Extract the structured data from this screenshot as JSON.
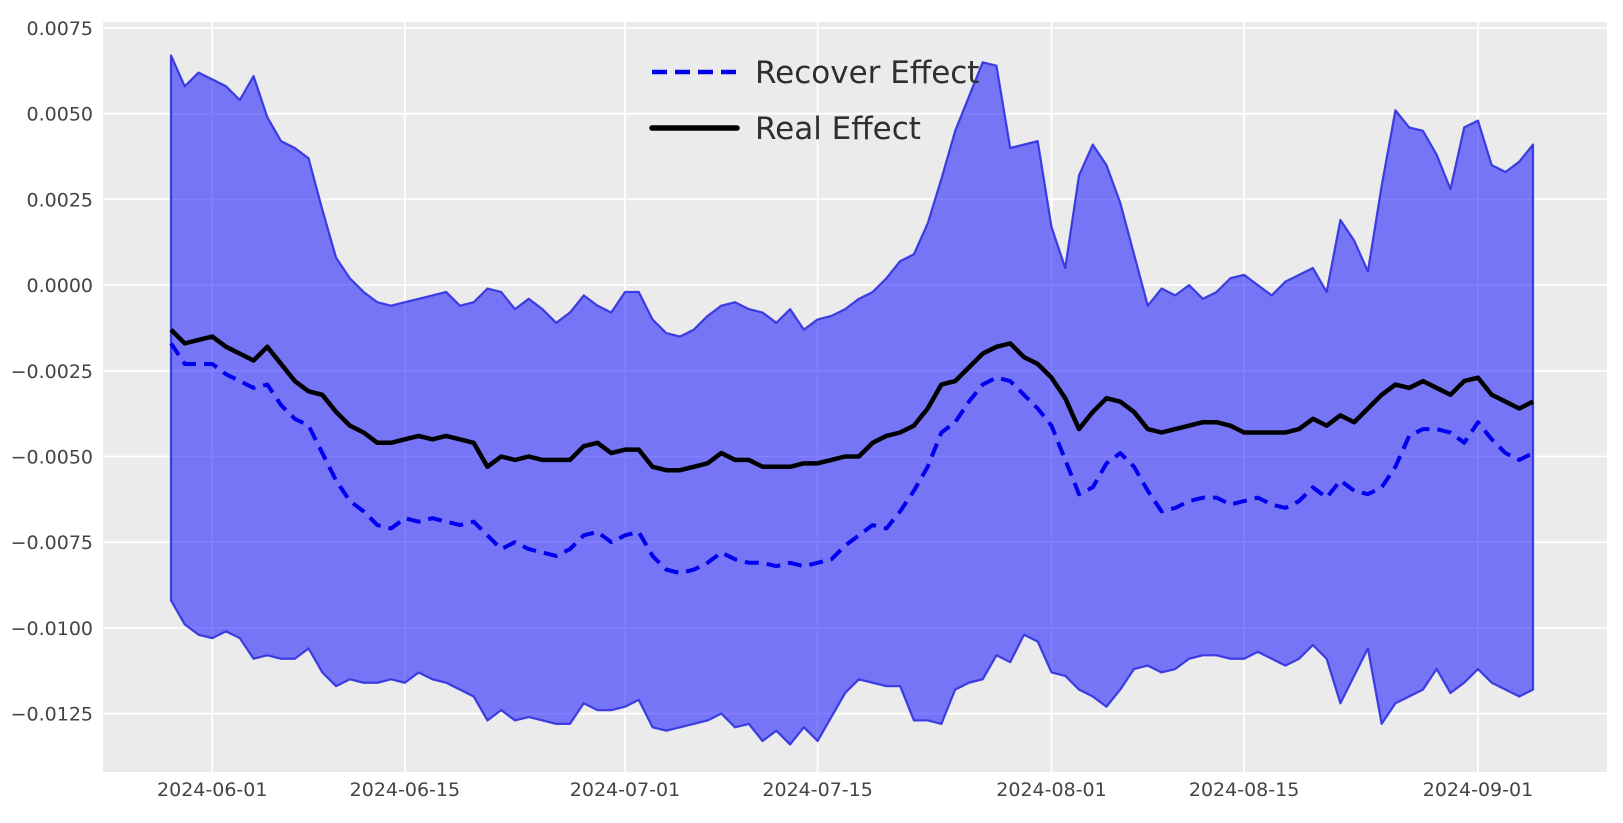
{
  "figure": {
    "background": "#ffffff",
    "plot_background": "#ebebeb",
    "grid_color": "#ffffff"
  },
  "legend": {
    "items": [
      {
        "label": "Recover Effect",
        "color": "#0000ee",
        "style": "dashed"
      },
      {
        "label": "Real Effect",
        "color": "#000000",
        "style": "solid"
      }
    ],
    "position": "upper center",
    "frame": false
  },
  "chart_data": {
    "type": "line",
    "title": "",
    "xlabel": "",
    "ylabel": "",
    "grid": true,
    "band_fill": "rgba(0,0,255,0.5)",
    "band_edge": "rgba(48,48,224,0.9)",
    "ylim": [
      -0.0142,
      0.00768
    ],
    "yticks": [
      0.0075,
      0.005,
      0.0025,
      0.0,
      -0.0025,
      -0.005,
      -0.0075,
      -0.01,
      -0.0125
    ],
    "xticks": [
      "2024-06-01",
      "2024-06-15",
      "2024-07-01",
      "2024-07-15",
      "2024-08-01",
      "2024-08-15",
      "2024-09-01"
    ],
    "x": [
      "2024-05-29",
      "2024-05-30",
      "2024-05-31",
      "2024-06-01",
      "2024-06-02",
      "2024-06-03",
      "2024-06-04",
      "2024-06-05",
      "2024-06-06",
      "2024-06-07",
      "2024-06-08",
      "2024-06-09",
      "2024-06-10",
      "2024-06-11",
      "2024-06-12",
      "2024-06-13",
      "2024-06-14",
      "2024-06-15",
      "2024-06-16",
      "2024-06-17",
      "2024-06-18",
      "2024-06-19",
      "2024-06-20",
      "2024-06-21",
      "2024-06-22",
      "2024-06-23",
      "2024-06-24",
      "2024-06-25",
      "2024-06-26",
      "2024-06-27",
      "2024-06-28",
      "2024-06-29",
      "2024-06-30",
      "2024-07-01",
      "2024-07-02",
      "2024-07-03",
      "2024-07-04",
      "2024-07-05",
      "2024-07-06",
      "2024-07-07",
      "2024-07-08",
      "2024-07-09",
      "2024-07-10",
      "2024-07-11",
      "2024-07-12",
      "2024-07-13",
      "2024-07-14",
      "2024-07-15",
      "2024-07-16",
      "2024-07-17",
      "2024-07-18",
      "2024-07-19",
      "2024-07-20",
      "2024-07-21",
      "2024-07-22",
      "2024-07-23",
      "2024-07-24",
      "2024-07-25",
      "2024-07-26",
      "2024-07-27",
      "2024-07-28",
      "2024-07-29",
      "2024-07-30",
      "2024-07-31",
      "2024-08-01",
      "2024-08-02",
      "2024-08-03",
      "2024-08-04",
      "2024-08-05",
      "2024-08-06",
      "2024-08-07",
      "2024-08-08",
      "2024-08-09",
      "2024-08-10",
      "2024-08-11",
      "2024-08-12",
      "2024-08-13",
      "2024-08-14",
      "2024-08-15",
      "2024-08-16",
      "2024-08-17",
      "2024-08-18",
      "2024-08-19",
      "2024-08-20",
      "2024-08-21",
      "2024-08-22",
      "2024-08-23",
      "2024-08-24",
      "2024-08-25",
      "2024-08-26",
      "2024-08-27",
      "2024-08-28",
      "2024-08-29",
      "2024-08-30",
      "2024-08-31",
      "2024-09-01",
      "2024-09-02",
      "2024-09-03",
      "2024-09-04",
      "2024-09-05"
    ],
    "series": [
      {
        "name": "Recover Effect",
        "style": "dashed",
        "color": "#0000ee",
        "values": [
          -0.0017,
          -0.0023,
          -0.0023,
          -0.0023,
          -0.0026,
          -0.0028,
          -0.003,
          -0.0029,
          -0.0035,
          -0.0039,
          -0.0041,
          -0.0049,
          -0.0057,
          -0.0063,
          -0.0066,
          -0.007,
          -0.0071,
          -0.0068,
          -0.0069,
          -0.0068,
          -0.0069,
          -0.007,
          -0.0069,
          -0.0073,
          -0.0077,
          -0.0075,
          -0.0077,
          -0.0078,
          -0.0079,
          -0.0077,
          -0.0073,
          -0.0072,
          -0.0075,
          -0.0073,
          -0.0072,
          -0.0079,
          -0.0083,
          -0.0084,
          -0.0083,
          -0.0081,
          -0.0078,
          -0.008,
          -0.0081,
          -0.0081,
          -0.0082,
          -0.0081,
          -0.0082,
          -0.0081,
          -0.008,
          -0.0076,
          -0.0073,
          -0.007,
          -0.0071,
          -0.0066,
          -0.006,
          -0.0053,
          -0.0043,
          -0.004,
          -0.0034,
          -0.0029,
          -0.0027,
          -0.0028,
          -0.0032,
          -0.0036,
          -0.0041,
          -0.0051,
          -0.0061,
          -0.0059,
          -0.0052,
          -0.0049,
          -0.0053,
          -0.006,
          -0.0066,
          -0.0065,
          -0.0063,
          -0.0062,
          -0.0062,
          -0.0064,
          -0.0063,
          -0.0062,
          -0.0064,
          -0.0065,
          -0.0063,
          -0.0059,
          -0.0062,
          -0.0057,
          -0.006,
          -0.0061,
          -0.0059,
          -0.0053,
          -0.0044,
          -0.0042,
          -0.0042,
          -0.0043,
          -0.0046,
          -0.004,
          -0.0045,
          -0.0049,
          -0.0051,
          -0.0049
        ]
      },
      {
        "name": "Real Effect",
        "style": "solid",
        "color": "#000000",
        "values": [
          -0.0013,
          -0.0017,
          -0.0016,
          -0.0015,
          -0.0018,
          -0.002,
          -0.0022,
          -0.0018,
          -0.0023,
          -0.0028,
          -0.0031,
          -0.0032,
          -0.0037,
          -0.0041,
          -0.0043,
          -0.0046,
          -0.0046,
          -0.0045,
          -0.0044,
          -0.0045,
          -0.0044,
          -0.0045,
          -0.0046,
          -0.0053,
          -0.005,
          -0.0051,
          -0.005,
          -0.0051,
          -0.0051,
          -0.0051,
          -0.0047,
          -0.0046,
          -0.0049,
          -0.0048,
          -0.0048,
          -0.0053,
          -0.0054,
          -0.0054,
          -0.0053,
          -0.0052,
          -0.0049,
          -0.0051,
          -0.0051,
          -0.0053,
          -0.0053,
          -0.0053,
          -0.0052,
          -0.0052,
          -0.0051,
          -0.005,
          -0.005,
          -0.0046,
          -0.0044,
          -0.0043,
          -0.0041,
          -0.0036,
          -0.0029,
          -0.0028,
          -0.0024,
          -0.002,
          -0.0018,
          -0.0017,
          -0.0021,
          -0.0023,
          -0.0027,
          -0.0033,
          -0.0042,
          -0.0037,
          -0.0033,
          -0.0034,
          -0.0037,
          -0.0042,
          -0.0043,
          -0.0042,
          -0.0041,
          -0.004,
          -0.004,
          -0.0041,
          -0.0043,
          -0.0043,
          -0.0043,
          -0.0043,
          -0.0042,
          -0.0039,
          -0.0041,
          -0.0038,
          -0.004,
          -0.0036,
          -0.0032,
          -0.0029,
          -0.003,
          -0.0028,
          -0.003,
          -0.0032,
          -0.0028,
          -0.0027,
          -0.0032,
          -0.0034,
          -0.0036,
          -0.0034
        ]
      },
      {
        "name": "CI upper",
        "role": "band_upper",
        "style": "band",
        "color": "rgba(0,0,255,0.5)",
        "values": [
          0.0067,
          0.0058,
          0.0062,
          0.006,
          0.0058,
          0.0054,
          0.0061,
          0.0049,
          0.0042,
          0.004,
          0.0037,
          0.0022,
          0.0008,
          0.0002,
          -0.0002,
          -0.0005,
          -0.0006,
          -0.0005,
          -0.0004,
          -0.0003,
          -0.0002,
          -0.0006,
          -0.0005,
          -0.0001,
          -0.0002,
          -0.0007,
          -0.0004,
          -0.0007,
          -0.0011,
          -0.0008,
          -0.0003,
          -0.0006,
          -0.0008,
          -0.0002,
          -0.0002,
          -0.001,
          -0.0014,
          -0.0015,
          -0.0013,
          -0.0009,
          -0.0006,
          -0.0005,
          -0.0007,
          -0.0008,
          -0.0011,
          -0.0007,
          -0.0013,
          -0.001,
          -0.0009,
          -0.0007,
          -0.0004,
          -0.0002,
          0.0002,
          0.0007,
          0.0009,
          0.0018,
          0.0031,
          0.0045,
          0.0055,
          0.0065,
          0.0064,
          0.004,
          0.0041,
          0.0042,
          0.0017,
          0.0005,
          0.0032,
          0.0041,
          0.0035,
          0.0024,
          0.0009,
          -0.0006,
          -0.0001,
          -0.0003,
          0.0,
          -0.0004,
          -0.0002,
          0.0002,
          0.0003,
          0.0,
          -0.0003,
          0.0001,
          0.0003,
          0.0005,
          -0.0002,
          0.0019,
          0.0013,
          0.0004,
          0.0029,
          0.0051,
          0.0046,
          0.0045,
          0.0038,
          0.0028,
          0.0046,
          0.0048,
          0.0035,
          0.0033,
          0.0036,
          0.0041
        ]
      },
      {
        "name": "CI lower",
        "role": "band_lower",
        "style": "band",
        "color": "rgba(0,0,255,0.5)",
        "values": [
          -0.0092,
          -0.0099,
          -0.0102,
          -0.0103,
          -0.0101,
          -0.0103,
          -0.0109,
          -0.0108,
          -0.0109,
          -0.0109,
          -0.0106,
          -0.0113,
          -0.0117,
          -0.0115,
          -0.0116,
          -0.0116,
          -0.0115,
          -0.0116,
          -0.0113,
          -0.0115,
          -0.0116,
          -0.0118,
          -0.012,
          -0.0127,
          -0.0124,
          -0.0127,
          -0.0126,
          -0.0127,
          -0.0128,
          -0.0128,
          -0.0122,
          -0.0124,
          -0.0124,
          -0.0123,
          -0.0121,
          -0.0129,
          -0.013,
          -0.0129,
          -0.0128,
          -0.0127,
          -0.0125,
          -0.0129,
          -0.0128,
          -0.0133,
          -0.013,
          -0.0134,
          -0.0129,
          -0.0133,
          -0.0126,
          -0.0119,
          -0.0115,
          -0.0116,
          -0.0117,
          -0.0117,
          -0.0127,
          -0.0127,
          -0.0128,
          -0.0118,
          -0.0116,
          -0.0115,
          -0.0108,
          -0.011,
          -0.0102,
          -0.0104,
          -0.0113,
          -0.0114,
          -0.0118,
          -0.012,
          -0.0123,
          -0.0118,
          -0.0112,
          -0.0111,
          -0.0113,
          -0.0112,
          -0.0109,
          -0.0108,
          -0.0108,
          -0.0109,
          -0.0109,
          -0.0107,
          -0.0109,
          -0.0111,
          -0.0109,
          -0.0105,
          -0.0109,
          -0.0122,
          -0.0114,
          -0.0106,
          -0.0128,
          -0.0122,
          -0.012,
          -0.0118,
          -0.0112,
          -0.0119,
          -0.0116,
          -0.0112,
          -0.0116,
          -0.0118,
          -0.012,
          -0.0118
        ]
      }
    ]
  }
}
